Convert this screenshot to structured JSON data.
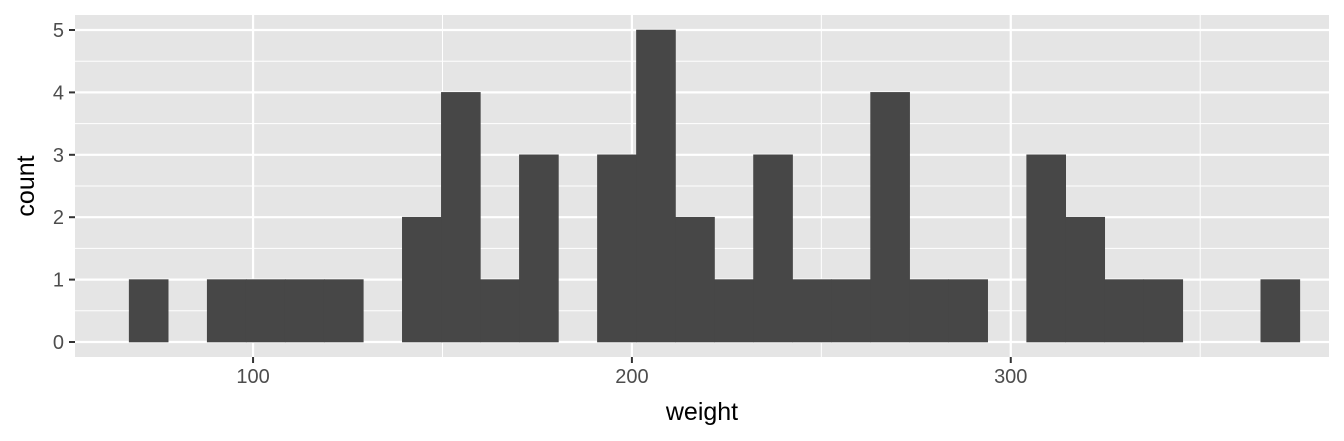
{
  "chart_data": {
    "type": "bar",
    "subtype": "histogram",
    "xlabel": "weight",
    "ylabel": "count",
    "xlim": [
      53,
      384
    ],
    "ylim": [
      0,
      5
    ],
    "x_ticks": [
      100,
      200,
      300
    ],
    "y_ticks": [
      0,
      1,
      2,
      3,
      4,
      5
    ],
    "x_tick_labels": [
      "100",
      "200",
      "300"
    ],
    "y_tick_labels": [
      "0",
      "1",
      "2",
      "3",
      "4",
      "5"
    ],
    "bin_width": 10.3,
    "bins": [
      {
        "x0": 67.3,
        "x1": 77.6,
        "count": 1
      },
      {
        "x0": 77.6,
        "x1": 87.9,
        "count": 0
      },
      {
        "x0": 87.9,
        "x1": 98.2,
        "count": 1
      },
      {
        "x0": 98.2,
        "x1": 108.5,
        "count": 1
      },
      {
        "x0": 108.5,
        "x1": 118.8,
        "count": 1
      },
      {
        "x0": 118.8,
        "x1": 129.1,
        "count": 1
      },
      {
        "x0": 129.1,
        "x1": 139.4,
        "count": 0
      },
      {
        "x0": 139.4,
        "x1": 149.7,
        "count": 2
      },
      {
        "x0": 149.7,
        "x1": 160.0,
        "count": 4
      },
      {
        "x0": 160.0,
        "x1": 170.3,
        "count": 1
      },
      {
        "x0": 170.3,
        "x1": 180.6,
        "count": 3
      },
      {
        "x0": 180.6,
        "x1": 190.9,
        "count": 0
      },
      {
        "x0": 190.9,
        "x1": 201.2,
        "count": 3
      },
      {
        "x0": 201.2,
        "x1": 211.5,
        "count": 5
      },
      {
        "x0": 211.5,
        "x1": 221.8,
        "count": 2
      },
      {
        "x0": 221.8,
        "x1": 232.1,
        "count": 1
      },
      {
        "x0": 232.1,
        "x1": 242.4,
        "count": 3
      },
      {
        "x0": 242.4,
        "x1": 252.7,
        "count": 1
      },
      {
        "x0": 252.7,
        "x1": 263.0,
        "count": 1
      },
      {
        "x0": 263.0,
        "x1": 273.3,
        "count": 4
      },
      {
        "x0": 273.3,
        "x1": 283.6,
        "count": 1
      },
      {
        "x0": 283.6,
        "x1": 293.9,
        "count": 1
      },
      {
        "x0": 293.9,
        "x1": 304.2,
        "count": 0
      },
      {
        "x0": 304.2,
        "x1": 314.5,
        "count": 3
      },
      {
        "x0": 314.5,
        "x1": 324.8,
        "count": 2
      },
      {
        "x0": 324.8,
        "x1": 335.1,
        "count": 1
      },
      {
        "x0": 335.1,
        "x1": 345.4,
        "count": 1
      },
      {
        "x0": 345.4,
        "x1": 355.7,
        "count": 0
      },
      {
        "x0": 355.7,
        "x1": 366.0,
        "count": 0
      },
      {
        "x0": 366.0,
        "x1": 376.3,
        "count": 1
      }
    ],
    "grid": true,
    "legend": "none",
    "colors": {
      "panel": "#e5e5e5",
      "grid": "#ffffff",
      "bar": "#474747",
      "tick": "#333333",
      "tick_label": "#4d4d4d"
    }
  }
}
